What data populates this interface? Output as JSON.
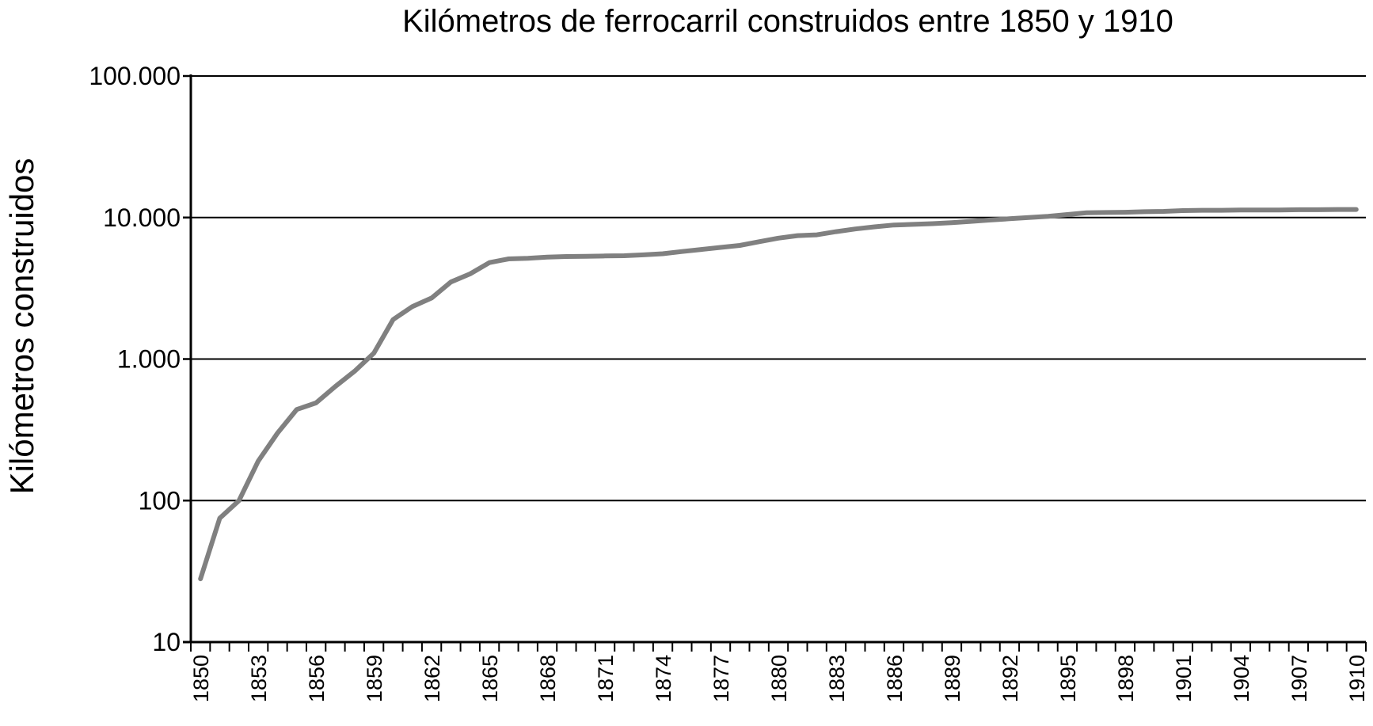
{
  "chart_data": {
    "type": "line",
    "title": "Kilómetros de ferrocarril construidos entre 1850 y 1910",
    "xlabel": "",
    "ylabel": "Kilómetros construidos",
    "yscale": "log",
    "ylim": [
      10,
      100000
    ],
    "xlim": [
      1850,
      1910
    ],
    "grid": "horizontal",
    "legend": "none",
    "line_color": "#808080",
    "ytick_values": [
      10,
      100,
      1000,
      10000,
      100000
    ],
    "ytick_labels": [
      "10",
      "100",
      "1.000",
      "10.000",
      "100.000"
    ],
    "xtick_labels": [
      "1850",
      "1853",
      "1856",
      "1859",
      "1862",
      "1865",
      "1868",
      "1871",
      "1874",
      "1877",
      "1880",
      "1883",
      "1886",
      "1889",
      "1892",
      "1895",
      "1898",
      "1901",
      "1904",
      "1907",
      "1910"
    ],
    "series": [
      {
        "x": [
          1850,
          1851,
          1852,
          1853,
          1854,
          1855,
          1856,
          1857,
          1858,
          1859,
          1860,
          1861,
          1862,
          1863,
          1864,
          1865,
          1866,
          1867,
          1868,
          1869,
          1870,
          1871,
          1872,
          1873,
          1874,
          1875,
          1876,
          1877,
          1878,
          1879,
          1880,
          1881,
          1882,
          1883,
          1884,
          1885,
          1886,
          1887,
          1888,
          1889,
          1890,
          1891,
          1892,
          1893,
          1894,
          1895,
          1896,
          1897,
          1898,
          1899,
          1900,
          1901,
          1902,
          1903,
          1904,
          1905,
          1906,
          1907,
          1908,
          1909,
          1910
        ],
        "values": [
          28,
          75,
          100,
          190,
          300,
          440,
          490,
          640,
          820,
          1100,
          1900,
          2350,
          2700,
          3500,
          4000,
          4800,
          5100,
          5150,
          5250,
          5300,
          5320,
          5350,
          5370,
          5450,
          5550,
          5750,
          5950,
          6150,
          6350,
          6750,
          7150,
          7450,
          7550,
          7950,
          8300,
          8600,
          8850,
          8950,
          9050,
          9200,
          9400,
          9600,
          9800,
          10000,
          10200,
          10500,
          10800,
          10850,
          10900,
          11000,
          11050,
          11200,
          11250,
          11250,
          11300,
          11300,
          11300,
          11350,
          11350,
          11400,
          11400
        ]
      }
    ]
  }
}
